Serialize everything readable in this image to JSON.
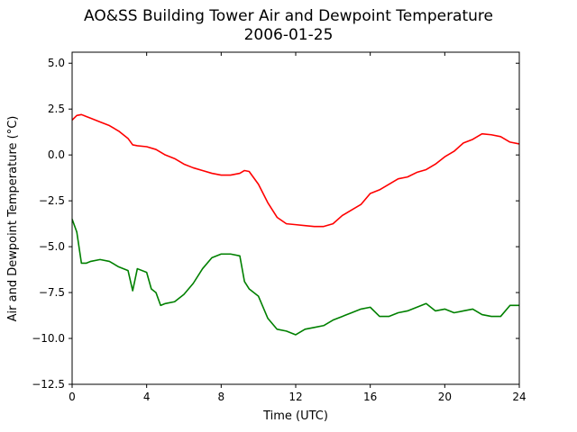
{
  "chart_data": {
    "type": "line",
    "title": "AO&SS Building Tower Air and Dewpoint Temperature",
    "subtitle": "2006-01-25",
    "xlabel": "Time (UTC)",
    "ylabel": "Air and Dewpoint Temperature (°C)",
    "xlim": [
      0,
      24
    ],
    "ylim": [
      -12.5,
      5.6
    ],
    "xticks": [
      0,
      4,
      8,
      12,
      16,
      20,
      24
    ],
    "yticks": [
      -12.5,
      -10.0,
      -7.5,
      -5.0,
      -2.5,
      0.0,
      2.5,
      5.0
    ],
    "xtick_labels": [
      "0",
      "4",
      "8",
      "12",
      "16",
      "20",
      "24"
    ],
    "ytick_labels": [
      "−12.5",
      "−10.0",
      "−7.5",
      "−5.0",
      "−2.5",
      "0.0",
      "2.5",
      "5.0"
    ],
    "grid": false,
    "series": [
      {
        "color": "#ff0000",
        "x": [
          0,
          0.25,
          0.5,
          0.75,
          1,
          1.5,
          2,
          2.5,
          3,
          3.25,
          3.5,
          4,
          4.5,
          5,
          5.5,
          6,
          6.5,
          7,
          7.5,
          8,
          8.5,
          9,
          9.25,
          9.5,
          10,
          10.5,
          11,
          11.5,
          12,
          12.5,
          13,
          13.5,
          14,
          14.5,
          15,
          15.5,
          16,
          16.5,
          17,
          17.5,
          18,
          18.5,
          19,
          19.5,
          20,
          20.5,
          21,
          21.5,
          22,
          22.5,
          23,
          23.5,
          24
        ],
        "y": [
          1.9,
          2.15,
          2.2,
          2.1,
          2.0,
          1.8,
          1.6,
          1.3,
          0.9,
          0.55,
          0.5,
          0.45,
          0.3,
          0.0,
          -0.2,
          -0.5,
          -0.7,
          -0.85,
          -1.0,
          -1.1,
          -1.1,
          -1.0,
          -0.85,
          -0.9,
          -1.6,
          -2.6,
          -3.4,
          -3.75,
          -3.8,
          -3.85,
          -3.9,
          -3.9,
          -3.75,
          -3.3,
          -3.0,
          -2.7,
          -2.1,
          -1.9,
          -1.6,
          -1.3,
          -1.2,
          -0.95,
          -0.8,
          -0.5,
          -0.1,
          0.2,
          0.65,
          0.85,
          1.15,
          1.1,
          1.0,
          0.7,
          0.6
        ]
      },
      {
        "color": "#008000",
        "x": [
          0,
          0.25,
          0.5,
          0.75,
          1,
          1.5,
          2,
          2.5,
          3,
          3.25,
          3.5,
          4,
          4.25,
          4.5,
          4.75,
          5,
          5.5,
          6,
          6.5,
          7,
          7.5,
          8,
          8.5,
          9,
          9.25,
          9.5,
          10,
          10.5,
          11,
          11.5,
          12,
          12.5,
          13,
          13.5,
          14,
          14.5,
          15,
          15.5,
          16,
          16.5,
          17,
          17.5,
          18,
          18.5,
          19,
          19.5,
          20,
          20.5,
          21,
          21.5,
          22,
          22.5,
          23,
          23.5,
          24
        ],
        "y": [
          -3.5,
          -4.2,
          -5.9,
          -5.9,
          -5.8,
          -5.7,
          -5.8,
          -6.1,
          -6.3,
          -7.4,
          -6.2,
          -6.4,
          -7.3,
          -7.5,
          -8.2,
          -8.1,
          -8.0,
          -7.6,
          -7.0,
          -6.2,
          -5.6,
          -5.4,
          -5.4,
          -5.5,
          -6.9,
          -7.3,
          -7.7,
          -8.9,
          -9.5,
          -9.6,
          -9.8,
          -9.5,
          -9.4,
          -9.3,
          -9.0,
          -8.8,
          -8.6,
          -8.4,
          -8.3,
          -8.8,
          -8.8,
          -8.6,
          -8.5,
          -8.3,
          -8.1,
          -8.5,
          -8.4,
          -8.6,
          -8.5,
          -8.4,
          -8.7,
          -8.8,
          -8.8,
          -8.2,
          -8.2
        ]
      }
    ]
  }
}
